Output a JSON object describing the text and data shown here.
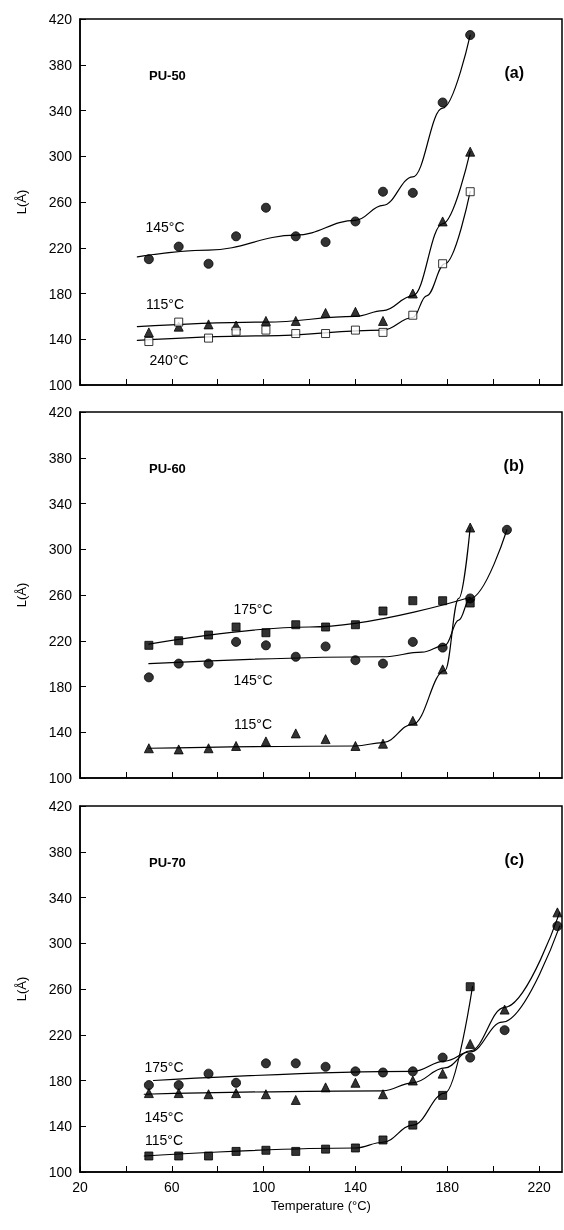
{
  "chart_data": [
    {
      "type": "scatter",
      "title": "PU-50",
      "ylabel": "L(Å)",
      "xlim": [
        20,
        230
      ],
      "ylim": [
        100,
        420
      ],
      "xticks": [
        20,
        {
          "value": 40,
          "label": null
        },
        60,
        {
          "value": 80,
          "label": null
        },
        100,
        {
          "value": 120,
          "label": null
        },
        140,
        {
          "value": 160,
          "label": null
        },
        180,
        {
          "value": 200,
          "label": null
        },
        220
      ],
      "yticks": [
        100,
        140,
        180,
        220,
        260,
        300,
        340,
        380,
        420
      ],
      "tick_labels": "y",
      "annotations": [
        "(a)",
        "145°C",
        "115°C",
        "240°C"
      ],
      "series": [
        {
          "marker": "circle",
          "color": "#000000",
          "x": [
            50,
            63,
            76,
            88,
            101,
            114,
            127,
            140,
            152,
            165,
            178,
            190
          ],
          "values": [
            210,
            221,
            206,
            230,
            255,
            230,
            225,
            243,
            269,
            268,
            347,
            406
          ]
        },
        {
          "marker": "triangle",
          "color": "#000000",
          "x": [
            50,
            63,
            76,
            88,
            101,
            114,
            127,
            140,
            152,
            165,
            178,
            190
          ],
          "values": [
            146,
            151,
            153,
            152,
            156,
            156,
            163,
            164,
            156,
            180,
            243,
            304
          ]
        },
        {
          "marker": "square",
          "color": "#ffffff",
          "x": [
            50,
            63,
            76,
            88,
            101,
            114,
            127,
            140,
            152,
            165,
            178,
            190
          ],
          "values": [
            138,
            155,
            141,
            147,
            148,
            145,
            145,
            148,
            146,
            161,
            206,
            269
          ]
        },
        {
          "type": "line",
          "marker": "none",
          "color": "#000000",
          "x": [
            45,
            76,
            114,
            140,
            152,
            165,
            178,
            190
          ],
          "values": [
            212,
            218,
            231,
            244,
            257,
            282,
            342,
            406
          ]
        },
        {
          "type": "line",
          "marker": "none",
          "color": "#000000",
          "x": [
            45,
            101,
            140,
            152,
            165,
            178,
            190
          ],
          "values": [
            151,
            155,
            160,
            165,
            178,
            241,
            304
          ]
        },
        {
          "type": "line",
          "marker": "none",
          "color": "#000000",
          "x": [
            45,
            101,
            152,
            165,
            171,
            179,
            190
          ],
          "values": [
            139,
            143,
            148,
            159,
            178,
            206,
            269
          ]
        }
      ]
    },
    {
      "type": "scatter",
      "title": "PU-60",
      "ylabel": "L(Å)",
      "xlim": [
        20,
        230
      ],
      "ylim": [
        100,
        420
      ],
      "xticks": [
        20,
        {
          "value": 40,
          "label": null
        },
        60,
        {
          "value": 80,
          "label": null
        },
        100,
        {
          "value": 120,
          "label": null
        },
        140,
        {
          "value": 160,
          "label": null
        },
        180,
        {
          "value": 200,
          "label": null
        },
        220
      ],
      "yticks": [
        100,
        140,
        180,
        220,
        260,
        300,
        340,
        380,
        420
      ],
      "tick_labels": "y",
      "annotations": [
        "(b)",
        "175°C",
        "145°C",
        "115°C"
      ],
      "series": [
        {
          "marker": "square",
          "color": "#000000",
          "x": [
            50,
            63,
            76,
            88,
            101,
            114,
            127,
            140,
            152,
            165,
            178,
            190
          ],
          "values": [
            216,
            220,
            225,
            232,
            227,
            234,
            232,
            234,
            246,
            255,
            255,
            253
          ]
        },
        {
          "marker": "circle",
          "color": "#000000",
          "x": [
            50,
            63,
            76,
            88,
            101,
            114,
            127,
            140,
            152,
            165,
            178,
            190,
            206
          ],
          "values": [
            188,
            200,
            200,
            219,
            216,
            206,
            215,
            203,
            200,
            219,
            214,
            257,
            317
          ]
        },
        {
          "marker": "triangle",
          "color": "#000000",
          "x": [
            50,
            63,
            76,
            88,
            101,
            114,
            127,
            140,
            152,
            165,
            178,
            190
          ],
          "values": [
            126,
            125,
            126,
            128,
            132,
            139,
            134,
            128,
            130,
            150,
            195,
            319
          ]
        },
        {
          "type": "line",
          "marker": "none",
          "color": "#000000",
          "x": [
            50,
            120,
            190
          ],
          "values": [
            217,
            232,
            258
          ]
        },
        {
          "type": "line",
          "marker": "none",
          "color": "#000000",
          "x": [
            50,
            152,
            169,
            179,
            185,
            190,
            206
          ],
          "values": [
            200,
            206,
            210,
            216,
            238,
            257,
            317
          ]
        },
        {
          "type": "line",
          "marker": "none",
          "color": "#000000",
          "x": [
            50,
            140,
            152,
            165,
            179,
            185,
            190
          ],
          "values": [
            126,
            128,
            131,
            147,
            194,
            257,
            319
          ]
        }
      ]
    },
    {
      "type": "scatter",
      "title": "PU-70",
      "xlabel": "Temperature (°C)",
      "ylabel": "L(Å)",
      "xlim": [
        20,
        230
      ],
      "ylim": [
        100,
        420
      ],
      "xticks": [
        20,
        {
          "value": 40,
          "label": null
        },
        60,
        {
          "value": 80,
          "label": null
        },
        100,
        {
          "value": 120,
          "label": null
        },
        140,
        {
          "value": 160,
          "label": null
        },
        180,
        {
          "value": 200,
          "label": null
        },
        220
      ],
      "yticks": [
        100,
        140,
        180,
        220,
        260,
        300,
        340,
        380,
        420
      ],
      "annotations": [
        "(c)",
        "175°C",
        "145°C",
        "115°C"
      ],
      "series": [
        {
          "marker": "circle",
          "color": "#000000",
          "x": [
            50,
            63,
            76,
            88,
            101,
            114,
            127,
            140,
            152,
            165,
            178,
            190,
            205,
            228
          ],
          "values": [
            176,
            176,
            186,
            178,
            195,
            195,
            192,
            188,
            187,
            188,
            200,
            200,
            224,
            315
          ]
        },
        {
          "marker": "triangle",
          "color": "#000000",
          "x": [
            50,
            63,
            76,
            88,
            101,
            114,
            127,
            140,
            152,
            165,
            178,
            190,
            205,
            228
          ],
          "values": [
            169,
            169,
            168,
            169,
            168,
            163,
            174,
            178,
            168,
            180,
            186,
            212,
            242,
            327
          ]
        },
        {
          "marker": "square",
          "color": "#000000",
          "x": [
            50,
            63,
            76,
            88,
            101,
            114,
            127,
            140,
            152,
            165,
            178,
            190
          ],
          "values": [
            114,
            114,
            114,
            118,
            119,
            118,
            120,
            121,
            128,
            141,
            167,
            262
          ]
        },
        {
          "type": "line",
          "marker": "none",
          "color": "#000000",
          "x": [
            52,
            165,
            179,
            190,
            204,
            229
          ],
          "values": [
            180,
            188,
            197,
            205,
            231,
            315
          ]
        },
        {
          "type": "line",
          "marker": "none",
          "color": "#000000",
          "x": [
            48,
            152,
            165,
            179,
            190,
            205,
            229
          ],
          "values": [
            168,
            171,
            178,
            191,
            206,
            244,
            327
          ]
        },
        {
          "type": "line",
          "marker": "none",
          "color": "#000000",
          "x": [
            48,
            140,
            152,
            165,
            179,
            191
          ],
          "values": [
            114,
            121,
            126,
            141,
            169,
            262
          ]
        }
      ]
    }
  ]
}
